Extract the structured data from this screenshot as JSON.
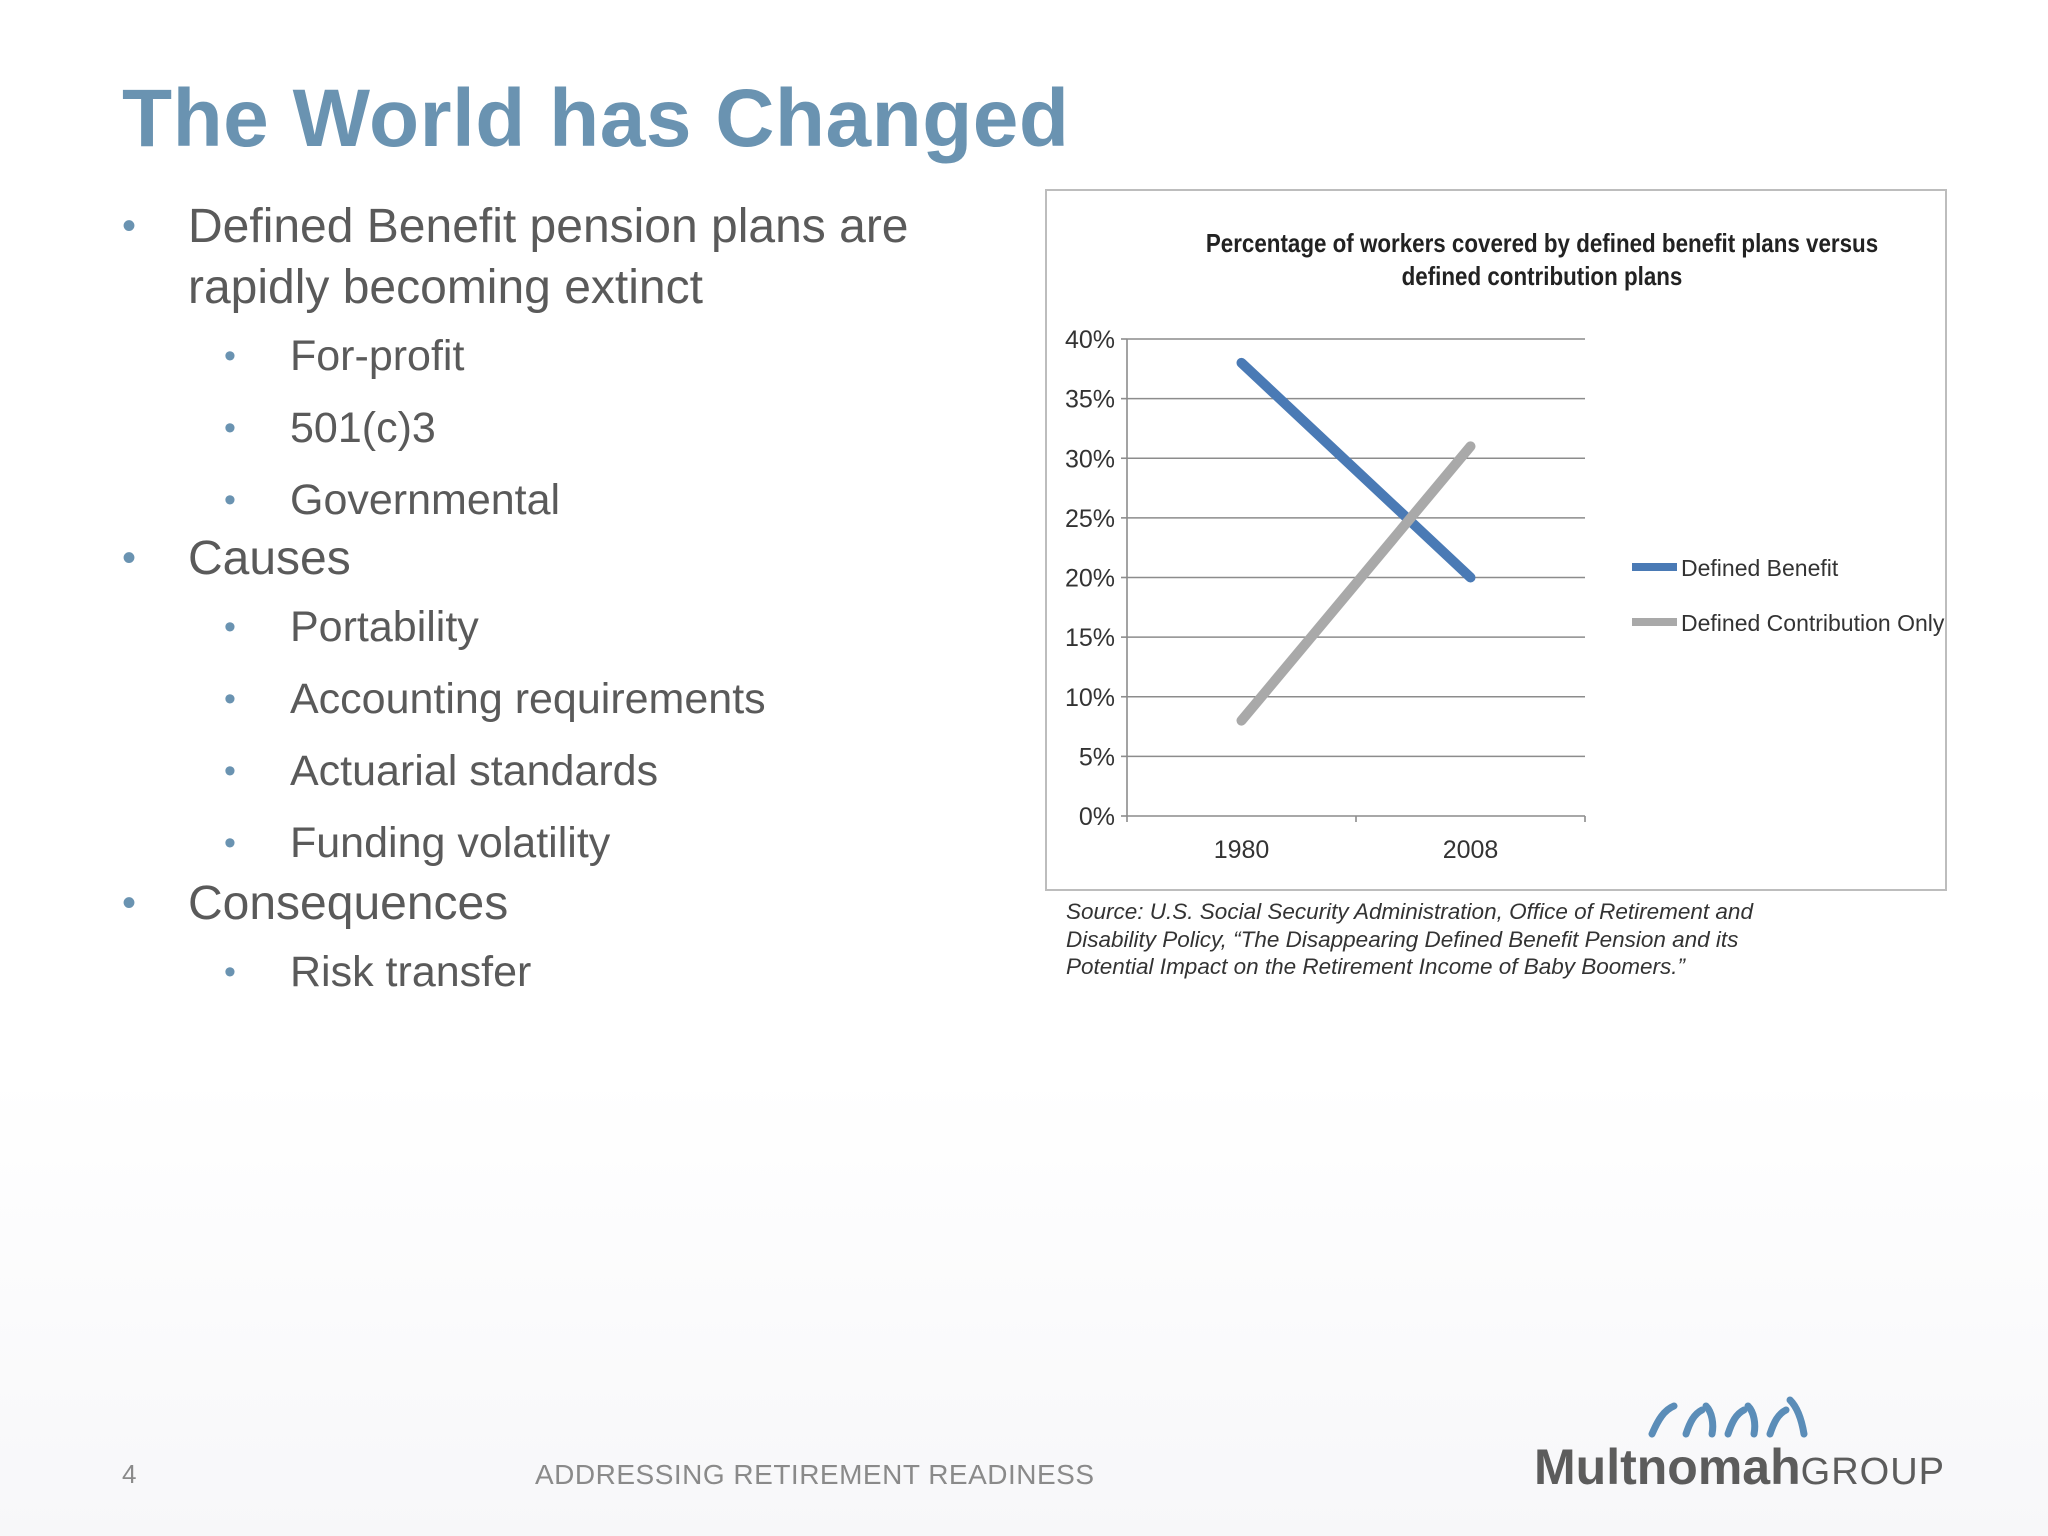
{
  "slide": {
    "title": "The World has Changed",
    "bullets": [
      {
        "text": "Defined Benefit pension plans are rapidly becoming extinct",
        "sub": [
          "For-profit",
          "501(c)3",
          "Governmental"
        ]
      },
      {
        "text": "Causes",
        "sub": [
          "Portability",
          "Accounting requirements",
          "Actuarial standards",
          "Funding volatility"
        ]
      },
      {
        "text": "Consequences",
        "sub": [
          "Risk transfer"
        ]
      }
    ],
    "bullet_char": "•",
    "source": "Source: U.S. Social Security Administration, Office of Retirement and Disability Policy, “The Disappearing Defined Benefit Pension and its Potential Impact on the Retirement Income of Baby Boomers.”",
    "footer": {
      "page_number": "4",
      "text": "ADDRESSING RETIREMENT READINESS"
    },
    "logo": {
      "strong": "Multnomah",
      "light": "GROUP"
    },
    "colors": {
      "accent": "#6a93b1",
      "text": "#5a5a5a",
      "db": "#4a7ab5",
      "dc": "#a9a9a9"
    }
  },
  "chart_data": {
    "type": "line",
    "title": "Percentage of workers covered by defined benefit plans versus defined contribution plans",
    "categories": [
      "1980",
      "2008"
    ],
    "series": [
      {
        "name": "Defined Benefit",
        "values": [
          38,
          20
        ],
        "color": "#4a7ab5"
      },
      {
        "name": "Defined Contribution Only",
        "values": [
          8,
          31
        ],
        "color": "#a9a9a9"
      }
    ],
    "ylim": [
      0,
      40
    ],
    "yticks": [
      "0%",
      "5%",
      "10%",
      "15%",
      "20%",
      "25%",
      "30%",
      "35%",
      "40%"
    ],
    "grid": true,
    "legend": "right"
  }
}
